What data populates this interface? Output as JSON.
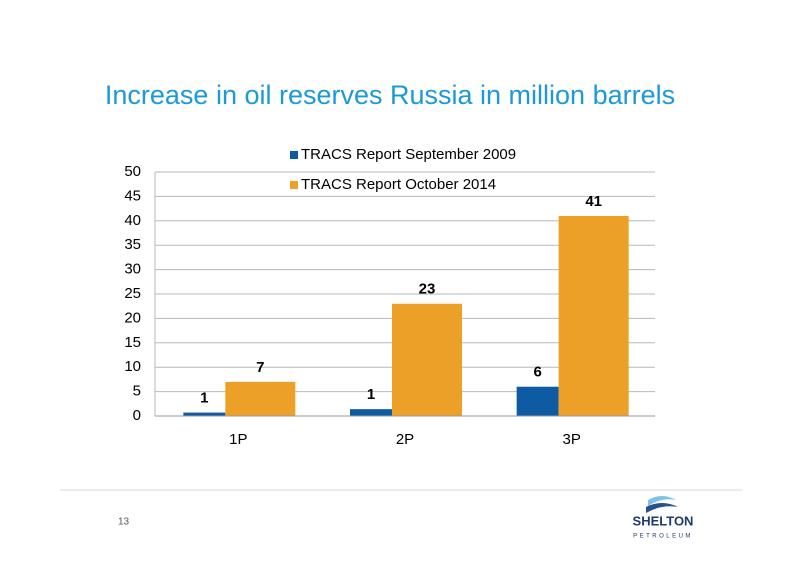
{
  "chart_data": {
    "type": "bar",
    "title": "Increase in oil reserves Russia in million barrels",
    "categories": [
      "1P",
      "2P",
      "3P"
    ],
    "series": [
      {
        "name": "TRACS Report September 2009",
        "color": "#0e5ba3",
        "values": [
          0.7,
          1.4,
          6
        ],
        "value_labels": [
          "1",
          "1",
          "6"
        ]
      },
      {
        "name": "TRACS Report October 2014",
        "color": "#eda027",
        "values": [
          7,
          23,
          41
        ]
      }
    ],
    "ylim": [
      0,
      50
    ],
    "yticks": [
      0,
      5,
      10,
      15,
      20,
      25,
      30,
      35,
      40,
      45,
      50
    ],
    "grid": true
  },
  "slide": {
    "page_number": "13",
    "logo_name": "SHELTON",
    "logo_subtitle": "PETROLEUM"
  }
}
